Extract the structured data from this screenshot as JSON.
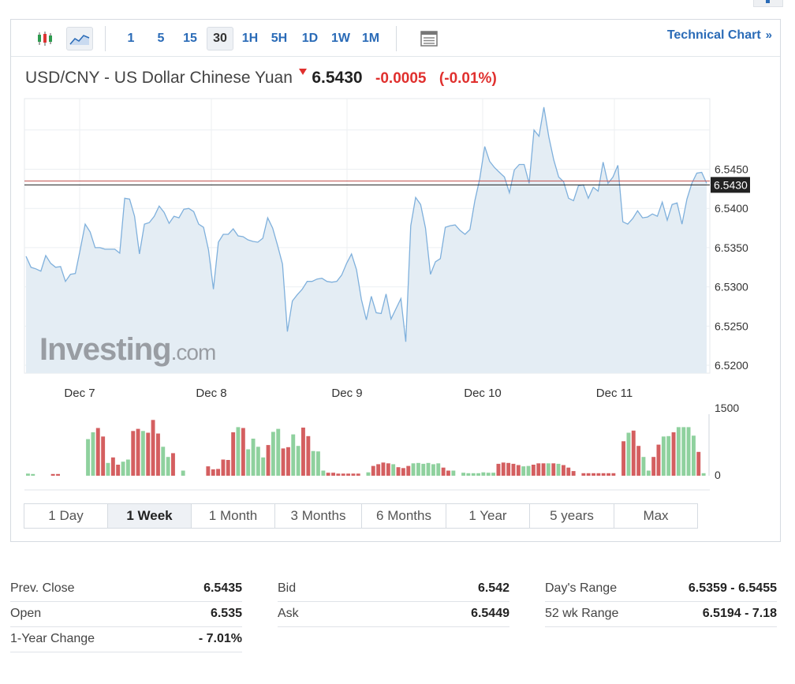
{
  "toolbar": {
    "intervals": [
      "1",
      "5",
      "15",
      "30",
      "1H",
      "5H",
      "1D",
      "1W",
      "1M"
    ],
    "active_interval": "30",
    "technical_chart_label": "Technical Chart",
    "technical_chart_chevron": "»"
  },
  "header": {
    "instrument": "USD/CNY - US Dollar Chinese Yuan",
    "price": "6.5430",
    "change": "-0.0005",
    "change_pct": "(-0.01%)",
    "direction": "down"
  },
  "watermark": {
    "brand": "Investing",
    "suffix": ".com"
  },
  "colors": {
    "line": "#7fb0dc",
    "area": "#e4edf4",
    "accent": "#2a6bb7",
    "negative": "#e0302e",
    "up_volume": "#8fd19e",
    "down_volume": "#d45f60"
  },
  "chart_data": {
    "type": "area",
    "x_ticks": [
      "Dec 7",
      "Dec 8",
      "Dec 9",
      "Dec 10",
      "Dec 11"
    ],
    "y_ticks": [
      "6.5450",
      "6.5400",
      "6.5350",
      "6.5300",
      "6.5250",
      "6.5200"
    ],
    "ylim": [
      6.519,
      6.554
    ],
    "current_price_label": "6.5430",
    "previous_close": 6.5435,
    "current_price": 6.543,
    "grid": true,
    "price_series": [
      6.5339,
      6.5325,
      6.5323,
      6.532,
      6.534,
      6.533,
      6.5325,
      6.5326,
      6.5307,
      6.5316,
      6.5317,
      6.5348,
      6.538,
      6.537,
      6.535,
      6.535,
      6.5348,
      6.5348,
      6.5348,
      6.5343,
      6.5413,
      6.5412,
      6.539,
      6.5342,
      6.538,
      6.5382,
      6.539,
      6.5403,
      6.5395,
      6.5381,
      6.539,
      6.5388,
      6.5399,
      6.54,
      6.5396,
      6.538,
      6.5376,
      6.5347,
      6.5297,
      6.5357,
      6.5367,
      6.5367,
      6.5374,
      6.5365,
      6.5364,
      6.536,
      6.5358,
      6.5357,
      6.5362,
      6.5388,
      6.5375,
      6.5353,
      6.5329,
      6.5243,
      6.5282,
      6.529,
      6.5297,
      6.5307,
      6.5307,
      6.531,
      6.5311,
      6.5307,
      6.5306,
      6.5307,
      6.5315,
      6.533,
      6.5342,
      6.5322,
      6.5284,
      6.5258,
      6.5288,
      6.5267,
      6.5266,
      6.5291,
      6.5259,
      6.5272,
      6.5285,
      6.523,
      6.5378,
      6.5414,
      6.5405,
      6.5375,
      6.5316,
      6.5332,
      6.5336,
      6.5376,
      6.5378,
      6.5379,
      6.5372,
      6.5367,
      6.5373,
      6.541,
      6.5438,
      6.5479,
      6.546,
      6.5452,
      6.5446,
      6.544,
      6.542,
      6.5449,
      6.5456,
      6.5456,
      6.5432,
      6.55,
      6.5492,
      6.5529,
      6.5491,
      6.5462,
      6.544,
      6.5434,
      6.5413,
      6.541,
      6.5429,
      6.543,
      6.5413,
      6.5427,
      6.5422,
      6.5459,
      6.5432,
      6.544,
      6.5455,
      6.5383,
      6.538,
      6.5387,
      6.5397,
      6.5388,
      6.5389,
      6.5393,
      6.539,
      6.5408,
      6.5385,
      6.5405,
      6.5407,
      6.538,
      6.5412,
      6.5432,
      6.5445,
      6.5446,
      6.5432
    ],
    "volume": {
      "y_ticks": [
        "1500",
        "0"
      ],
      "ylim": [
        0,
        1500
      ],
      "bars": [
        {
          "v": 50,
          "d": "up"
        },
        {
          "v": 40,
          "d": "up"
        },
        {
          "v": 0,
          "d": "up"
        },
        {
          "v": 0,
          "d": "up"
        },
        {
          "v": 0,
          "d": "up"
        },
        {
          "v": 40,
          "d": "down"
        },
        {
          "v": 40,
          "d": "down"
        },
        {
          "v": 0,
          "d": "up"
        },
        {
          "v": 0,
          "d": "up"
        },
        {
          "v": 0,
          "d": "up"
        },
        {
          "v": 0,
          "d": "up"
        },
        {
          "v": 0,
          "d": "up"
        },
        {
          "v": 860,
          "d": "up"
        },
        {
          "v": 1020,
          "d": "up"
        },
        {
          "v": 1120,
          "d": "down"
        },
        {
          "v": 920,
          "d": "down"
        },
        {
          "v": 300,
          "d": "up"
        },
        {
          "v": 430,
          "d": "down"
        },
        {
          "v": 260,
          "d": "down"
        },
        {
          "v": 330,
          "d": "up"
        },
        {
          "v": 380,
          "d": "up"
        },
        {
          "v": 1050,
          "d": "down"
        },
        {
          "v": 1100,
          "d": "down"
        },
        {
          "v": 1050,
          "d": "up"
        },
        {
          "v": 1010,
          "d": "down"
        },
        {
          "v": 1310,
          "d": "down"
        },
        {
          "v": 990,
          "d": "down"
        },
        {
          "v": 680,
          "d": "up"
        },
        {
          "v": 440,
          "d": "up"
        },
        {
          "v": 530,
          "d": "down"
        },
        {
          "v": 0,
          "d": "up"
        },
        {
          "v": 120,
          "d": "up"
        },
        {
          "v": 0,
          "d": "up"
        },
        {
          "v": 0,
          "d": "up"
        },
        {
          "v": 0,
          "d": "up"
        },
        {
          "v": 0,
          "d": "up"
        },
        {
          "v": 220,
          "d": "down"
        },
        {
          "v": 150,
          "d": "down"
        },
        {
          "v": 160,
          "d": "down"
        },
        {
          "v": 380,
          "d": "down"
        },
        {
          "v": 370,
          "d": "down"
        },
        {
          "v": 1020,
          "d": "down"
        },
        {
          "v": 1140,
          "d": "up"
        },
        {
          "v": 1120,
          "d": "down"
        },
        {
          "v": 620,
          "d": "up"
        },
        {
          "v": 870,
          "d": "up"
        },
        {
          "v": 680,
          "d": "up"
        },
        {
          "v": 430,
          "d": "up"
        },
        {
          "v": 720,
          "d": "down"
        },
        {
          "v": 1030,
          "d": "up"
        },
        {
          "v": 1100,
          "d": "up"
        },
        {
          "v": 640,
          "d": "down"
        },
        {
          "v": 670,
          "d": "down"
        },
        {
          "v": 970,
          "d": "up"
        },
        {
          "v": 700,
          "d": "up"
        },
        {
          "v": 1130,
          "d": "down"
        },
        {
          "v": 930,
          "d": "down"
        },
        {
          "v": 580,
          "d": "up"
        },
        {
          "v": 570,
          "d": "up"
        },
        {
          "v": 120,
          "d": "up"
        },
        {
          "v": 70,
          "d": "down"
        },
        {
          "v": 70,
          "d": "down"
        },
        {
          "v": 50,
          "d": "down"
        },
        {
          "v": 50,
          "d": "down"
        },
        {
          "v": 50,
          "d": "down"
        },
        {
          "v": 50,
          "d": "down"
        },
        {
          "v": 50,
          "d": "down"
        },
        {
          "v": 0,
          "d": "up"
        },
        {
          "v": 80,
          "d": "up"
        },
        {
          "v": 230,
          "d": "down"
        },
        {
          "v": 270,
          "d": "down"
        },
        {
          "v": 310,
          "d": "down"
        },
        {
          "v": 290,
          "d": "down"
        },
        {
          "v": 270,
          "d": "up"
        },
        {
          "v": 200,
          "d": "down"
        },
        {
          "v": 180,
          "d": "down"
        },
        {
          "v": 230,
          "d": "down"
        },
        {
          "v": 290,
          "d": "up"
        },
        {
          "v": 300,
          "d": "up"
        },
        {
          "v": 280,
          "d": "up"
        },
        {
          "v": 300,
          "d": "up"
        },
        {
          "v": 270,
          "d": "up"
        },
        {
          "v": 290,
          "d": "up"
        },
        {
          "v": 190,
          "d": "down"
        },
        {
          "v": 120,
          "d": "down"
        },
        {
          "v": 120,
          "d": "up"
        },
        {
          "v": 0,
          "d": "up"
        },
        {
          "v": 70,
          "d": "up"
        },
        {
          "v": 60,
          "d": "up"
        },
        {
          "v": 60,
          "d": "up"
        },
        {
          "v": 60,
          "d": "up"
        },
        {
          "v": 80,
          "d": "up"
        },
        {
          "v": 70,
          "d": "up"
        },
        {
          "v": 70,
          "d": "up"
        },
        {
          "v": 280,
          "d": "down"
        },
        {
          "v": 310,
          "d": "down"
        },
        {
          "v": 300,
          "d": "down"
        },
        {
          "v": 280,
          "d": "down"
        },
        {
          "v": 250,
          "d": "down"
        },
        {
          "v": 220,
          "d": "up"
        },
        {
          "v": 230,
          "d": "up"
        },
        {
          "v": 260,
          "d": "down"
        },
        {
          "v": 290,
          "d": "down"
        },
        {
          "v": 290,
          "d": "down"
        },
        {
          "v": 290,
          "d": "up"
        },
        {
          "v": 290,
          "d": "down"
        },
        {
          "v": 280,
          "d": "up"
        },
        {
          "v": 250,
          "d": "down"
        },
        {
          "v": 190,
          "d": "down"
        },
        {
          "v": 110,
          "d": "down"
        },
        {
          "v": 0,
          "d": "up"
        },
        {
          "v": 60,
          "d": "down"
        },
        {
          "v": 60,
          "d": "down"
        },
        {
          "v": 60,
          "d": "down"
        },
        {
          "v": 60,
          "d": "down"
        },
        {
          "v": 60,
          "d": "down"
        },
        {
          "v": 60,
          "d": "down"
        },
        {
          "v": 60,
          "d": "down"
        },
        {
          "v": 0,
          "d": "up"
        },
        {
          "v": 810,
          "d": "down"
        },
        {
          "v": 1010,
          "d": "up"
        },
        {
          "v": 1060,
          "d": "down"
        },
        {
          "v": 700,
          "d": "down"
        },
        {
          "v": 440,
          "d": "up"
        },
        {
          "v": 120,
          "d": "up"
        },
        {
          "v": 440,
          "d": "down"
        },
        {
          "v": 730,
          "d": "down"
        },
        {
          "v": 920,
          "d": "up"
        },
        {
          "v": 930,
          "d": "up"
        },
        {
          "v": 1020,
          "d": "down"
        },
        {
          "v": 1140,
          "d": "up"
        },
        {
          "v": 1140,
          "d": "up"
        },
        {
          "v": 1140,
          "d": "up"
        },
        {
          "v": 940,
          "d": "up"
        },
        {
          "v": 560,
          "d": "down"
        },
        {
          "v": 60,
          "d": "up"
        }
      ]
    }
  },
  "range_tabs": [
    "1 Day",
    "1 Week",
    "1 Month",
    "3 Months",
    "6 Months",
    "1 Year",
    "5 years",
    "Max"
  ],
  "active_range": "1 Week",
  "stats": [
    {
      "label": "Prev. Close",
      "value": "6.5435"
    },
    {
      "label": "Open",
      "value": "6.535"
    },
    {
      "label": "1-Year Change",
      "value": "- 7.01%"
    },
    {
      "label": "Bid",
      "value": "6.542"
    },
    {
      "label": "Ask",
      "value": "6.5449"
    },
    {
      "label": "Day's Range",
      "value": "6.5359 - 6.5455"
    },
    {
      "label": "52 wk Range",
      "value": "6.5194 - 7.18"
    }
  ]
}
